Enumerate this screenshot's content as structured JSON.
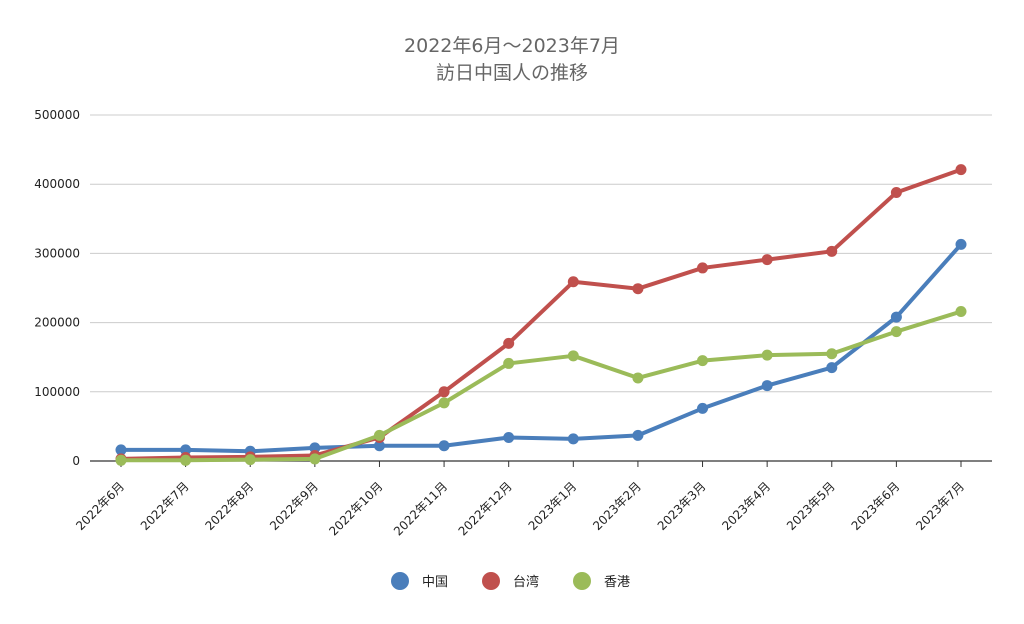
{
  "chart_data": {
    "type": "line",
    "title_lines": [
      "2022年6月～2023年7月",
      "訪日中国人の推移"
    ],
    "xlabel": "",
    "ylabel": "",
    "categories": [
      "2022年6月",
      "2022年7月",
      "2022年8月",
      "2022年9月",
      "2022年10月",
      "2022年11月",
      "2022年12月",
      "2023年1月",
      "2023年2月",
      "2023年3月",
      "2023年4月",
      "2023年5月",
      "2023年6月",
      "2023年7月"
    ],
    "ylim": [
      0,
      500000
    ],
    "yticks": [
      "0",
      "100000",
      "200000",
      "300000",
      "400000",
      "500000"
    ],
    "grid": true,
    "legend_position": "bottom",
    "series": [
      {
        "name": "中国",
        "color": "#4a7ebb",
        "values": [
          16000,
          16000,
          14000,
          19000,
          22000,
          22000,
          34000,
          32000,
          37000,
          76000,
          109000,
          135000,
          208000,
          313000
        ]
      },
      {
        "name": "台湾",
        "color": "#c0504d",
        "values": [
          3000,
          5000,
          6000,
          8000,
          34000,
          100000,
          170000,
          259000,
          249000,
          279000,
          291000,
          303000,
          388000,
          421000
        ]
      },
      {
        "name": "香港",
        "color": "#9bbb59",
        "values": [
          1000,
          1000,
          2000,
          3000,
          37000,
          84000,
          141000,
          152000,
          120000,
          145000,
          153000,
          155000,
          187000,
          216000
        ]
      }
    ]
  }
}
